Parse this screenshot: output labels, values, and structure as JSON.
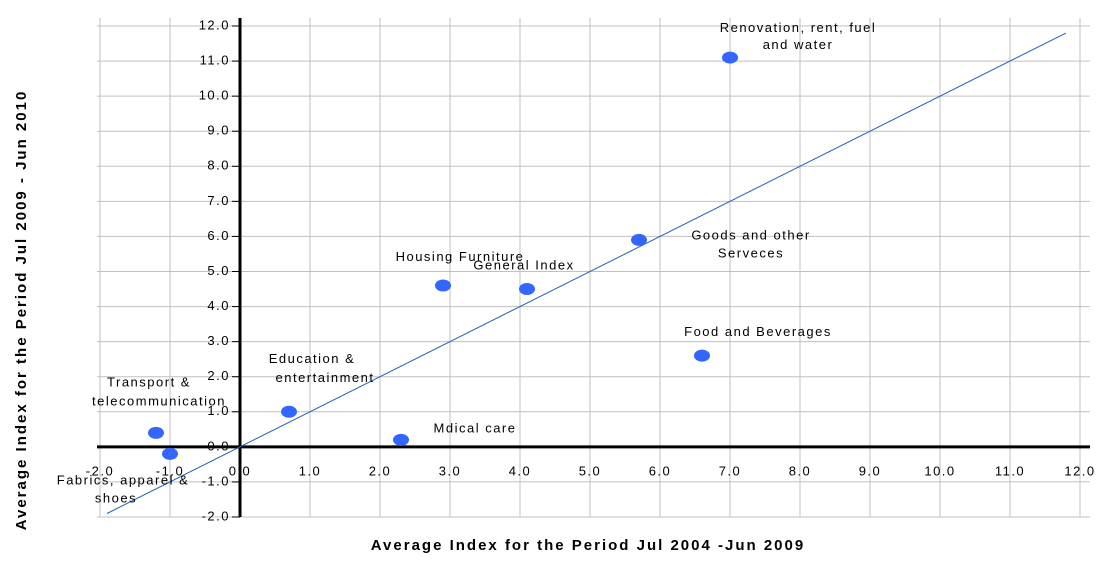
{
  "chart_data": {
    "type": "scatter",
    "x_label": "Average Index for the Period Jul 2004 -Jun 2009",
    "y_label": "Average Index for the Period Jul 2009 - Jun 2010",
    "x": [
      7.0,
      5.7,
      2.9,
      4.1,
      6.6,
      0.7,
      2.3,
      -1.2,
      -1.0
    ],
    "y": [
      11.1,
      5.9,
      4.6,
      4.5,
      2.6,
      1.0,
      0.2,
      0.4,
      -0.2
    ],
    "labels": [
      [
        "Renovation, rent, fuel",
        "and water"
      ],
      [
        "Goods and other",
        "Serveces"
      ],
      [
        "Housing Furniture"
      ],
      [
        "General Index"
      ],
      [
        "Food and Beverages"
      ],
      [
        "Education &",
        "entertainment"
      ],
      [
        "Mdical care"
      ],
      [
        "Transport &",
        "telecommunication"
      ],
      [
        "Fabrics, apparel &",
        "shoes"
      ]
    ],
    "color": "#3366ff",
    "trendline": {
      "x": [
        -1.9,
        11.8
      ],
      "y": [
        -1.9,
        11.8
      ],
      "color": "#1f5fbf"
    },
    "xlim": [
      -2,
      12
    ],
    "ylim": [
      -2,
      12
    ],
    "xticks": [
      {
        "value": -2,
        "label": "-2.0"
      },
      {
        "value": -1,
        "label": "-1.0"
      },
      {
        "value": 0,
        "label": "0.0"
      },
      {
        "value": 1,
        "label": "1.0"
      },
      {
        "value": 2,
        "label": "2.0"
      },
      {
        "value": 3,
        "label": "3.0"
      },
      {
        "value": 4,
        "label": "4.0"
      },
      {
        "value": 5,
        "label": "5.0"
      },
      {
        "value": 6,
        "label": "6.0"
      },
      {
        "value": 7,
        "label": "7.0"
      },
      {
        "value": 8,
        "label": "8.0"
      },
      {
        "value": 9,
        "label": "9.0"
      },
      {
        "value": 10,
        "label": "10.0"
      },
      {
        "value": 11,
        "label": "11.0"
      },
      {
        "value": 12,
        "label": "12.0"
      }
    ],
    "yticks": [
      {
        "value": -2,
        "label": "-2.0"
      },
      {
        "value": -1,
        "label": "-1.0"
      },
      {
        "value": 0,
        "label": "0.0"
      },
      {
        "value": 1,
        "label": "1.0"
      },
      {
        "value": 2,
        "label": "2.0"
      },
      {
        "value": 3,
        "label": "3.0"
      },
      {
        "value": 4,
        "label": "4.0"
      },
      {
        "value": 5,
        "label": "5.0"
      },
      {
        "value": 6,
        "label": "6.0"
      },
      {
        "value": 7,
        "label": "7.0"
      },
      {
        "value": 8,
        "label": "8.0"
      },
      {
        "value": 9,
        "label": "9.0"
      },
      {
        "value": 10,
        "label": "10.0"
      },
      {
        "value": 11,
        "label": "11.0"
      },
      {
        "value": 12,
        "label": "12.0"
      }
    ],
    "grid": true
  }
}
